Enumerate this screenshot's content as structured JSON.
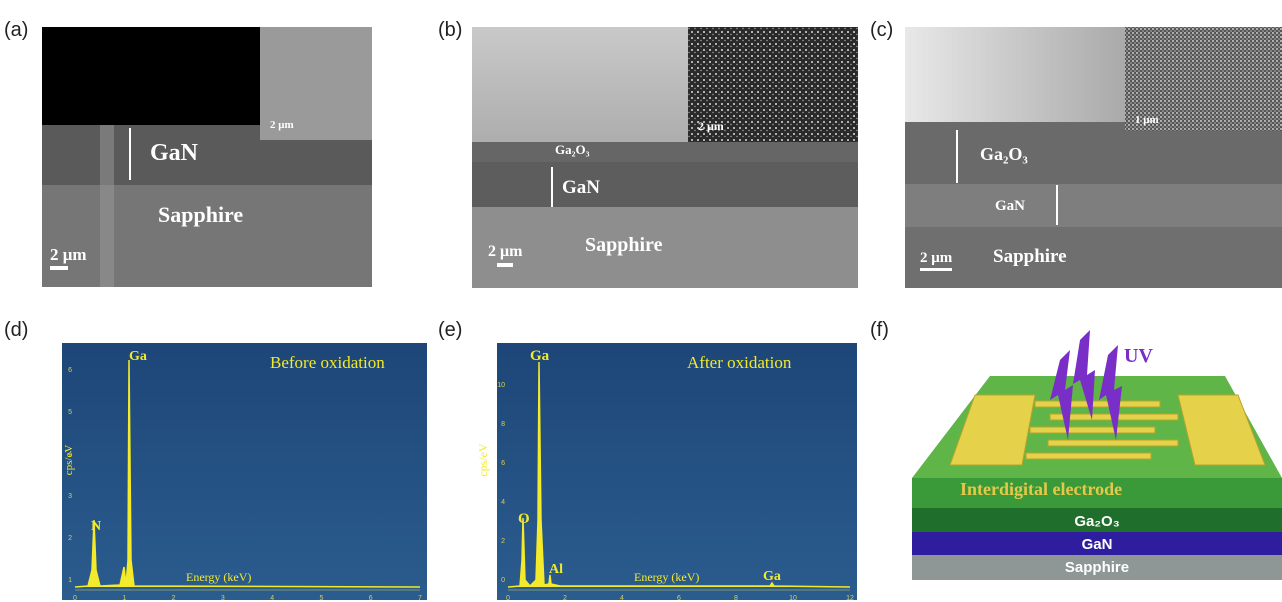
{
  "panels": {
    "a": {
      "label": "(a)",
      "layer_1": "GaN",
      "layer_2": "Sapphire",
      "scale_bar": "2 μm",
      "inset_scale_bar": "2 μm"
    },
    "b": {
      "label": "(b)",
      "layer_0": "Ga₂O₃",
      "layer_1": "GaN",
      "layer_2": "Sapphire",
      "scale_bar": "2 μm",
      "inset_scale_bar": "2 μm"
    },
    "c": {
      "label": "(c)",
      "layer_0": "Ga₂O₃",
      "layer_1": "GaN",
      "layer_2": "Sapphire",
      "scale_bar": "2 μm",
      "inset_scale_bar": "1 μm"
    },
    "d": {
      "label": "(d)",
      "title": "Before oxidation",
      "y_axis": "cps/eV",
      "x_axis": "Energy (keV)",
      "peaks": [
        "N",
        "Ga"
      ],
      "y_tick_labels": [
        "1",
        "2",
        "3",
        "4",
        "5",
        "6"
      ],
      "x_tick_labels": [
        "0",
        "1",
        "2",
        "3",
        "4",
        "5",
        "6",
        "7"
      ]
    },
    "e": {
      "label": "(e)",
      "title": "After oxidation",
      "y_axis": "cps/eV",
      "x_axis": "Energy (keV)",
      "peaks": [
        "O",
        "Ga",
        "Al",
        "Ga"
      ],
      "y_tick_labels": [
        "0",
        "2",
        "4",
        "6",
        "8",
        "10"
      ],
      "x_tick_labels": [
        "0",
        "2",
        "4",
        "6",
        "8",
        "10",
        "12"
      ]
    },
    "f": {
      "label": "(f)",
      "light": "UV",
      "electrode": "Interdigital electrode",
      "layer_0": "Ga₂O₃",
      "layer_1": "GaN",
      "layer_2": "Sapphire"
    }
  }
}
